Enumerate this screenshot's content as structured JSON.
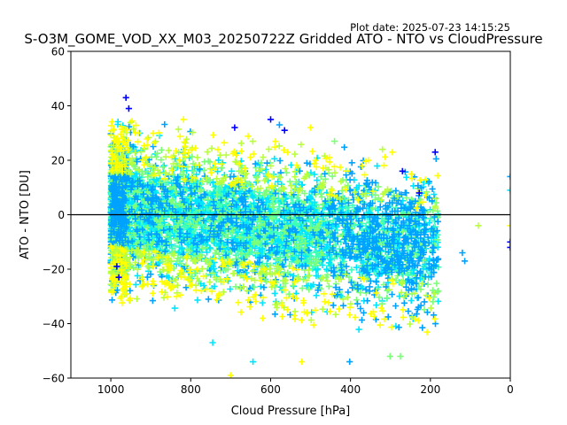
{
  "header": {
    "plot_date": "Plot date: 2025-07-23 14:15:25"
  },
  "chart_data": {
    "type": "scatter",
    "title": "S-O3M_GOME_VOD_XX_M03_20250722Z Gridded ATO - NTO vs CloudPressure",
    "xlabel": "Cloud Pressure [hPa]",
    "ylabel": "ATO - NTO [DU]",
    "xlim": [
      1100,
      0
    ],
    "ylim": [
      -60,
      60
    ],
    "x_reversed": true,
    "x_ticks": [
      1000,
      800,
      600,
      400,
      200,
      0
    ],
    "y_ticks": [
      -60,
      -40,
      -20,
      0,
      20,
      40,
      60
    ],
    "reference_line": {
      "y": 0,
      "color": "#000000"
    },
    "marker": "plus",
    "grid": false,
    "colors": [
      "#0000ff",
      "#00a2ff",
      "#00e5ff",
      "#3dffb8",
      "#7dff79",
      "#b9ff3d",
      "#ffff00"
    ],
    "scatter_cloud": {
      "x_range": [
        1000,
        180
      ],
      "y_center": -2,
      "y_spread_at_1000": [
        -28,
        32
      ],
      "y_spread_at_300": [
        -40,
        20
      ],
      "point_count": 6000
    },
    "outliers": [
      {
        "x": 962,
        "y": 43,
        "c": 0
      },
      {
        "x": 955,
        "y": 39,
        "c": 0
      },
      {
        "x": 600,
        "y": 35,
        "c": 0
      },
      {
        "x": 578,
        "y": 33,
        "c": 1
      },
      {
        "x": 565,
        "y": 31,
        "c": 0
      },
      {
        "x": 188,
        "y": 23,
        "c": 0
      },
      {
        "x": 690,
        "y": 32,
        "c": 0
      },
      {
        "x": 700,
        "y": -59,
        "c": 6
      },
      {
        "x": 745,
        "y": -47,
        "c": 2
      },
      {
        "x": 644,
        "y": -54,
        "c": 2
      },
      {
        "x": 522,
        "y": -54,
        "c": 6
      },
      {
        "x": 402,
        "y": -54,
        "c": 1
      },
      {
        "x": 301,
        "y": -52,
        "c": 4
      },
      {
        "x": 275,
        "y": -52,
        "c": 4
      },
      {
        "x": 120,
        "y": -14,
        "c": 1
      },
      {
        "x": 114,
        "y": -17,
        "c": 1
      },
      {
        "x": 80,
        "y": -4,
        "c": 5
      },
      {
        "x": 0,
        "y": 14,
        "c": 1
      },
      {
        "x": 0,
        "y": 9,
        "c": 2
      },
      {
        "x": 0,
        "y": -4,
        "c": 6
      },
      {
        "x": 0,
        "y": -10,
        "c": 0
      },
      {
        "x": 0,
        "y": -12,
        "c": 0
      },
      {
        "x": 180,
        "y": -28,
        "c": 4
      },
      {
        "x": 215,
        "y": -32,
        "c": 1
      },
      {
        "x": 230,
        "y": -34,
        "c": 1
      },
      {
        "x": 980,
        "y": -23,
        "c": 0
      },
      {
        "x": 985,
        "y": -19,
        "c": 0
      },
      {
        "x": 320,
        "y": 24,
        "c": 5
      },
      {
        "x": 295,
        "y": 23,
        "c": 6
      },
      {
        "x": 500,
        "y": 32,
        "c": 6
      },
      {
        "x": 440,
        "y": 27,
        "c": 4
      },
      {
        "x": 270,
        "y": 16,
        "c": 0
      },
      {
        "x": 228,
        "y": 8,
        "c": 0
      },
      {
        "x": 818,
        "y": 35,
        "c": 6
      }
    ]
  }
}
